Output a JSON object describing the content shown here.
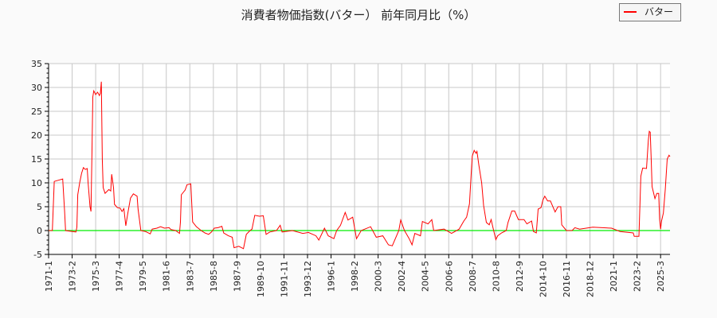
{
  "chart_data": {
    "type": "line",
    "title": "消費者物価指数(バター） 前年同月比（%）",
    "xlabel": "",
    "ylabel": "",
    "ylim": [
      -5,
      35
    ],
    "yticks": [
      -5,
      0,
      5,
      10,
      15,
      20,
      25,
      30,
      35
    ],
    "xlim": [
      "1971-1",
      "2026-1"
    ],
    "xticks": [
      "1971-1",
      "1973-2",
      "1975-3",
      "1977-4",
      "1979-5",
      "1981-6",
      "1983-7",
      "1985-8",
      "1987-9",
      "1989-10",
      "1991-11",
      "1993-12",
      "1996-1",
      "1998-2",
      "2000-3",
      "2002-4",
      "2004-5",
      "2006-6",
      "2008-7",
      "2010-8",
      "2012-9",
      "2014-10",
      "2016-11",
      "2018-12",
      "2021-1",
      "2023-2",
      "2025-3"
    ],
    "grid": true,
    "legend_position": "top-right",
    "reference_line": {
      "y": 0,
      "color": "#00ee00"
    },
    "series": [
      {
        "name": "バター",
        "color": "#ff0000",
        "points": [
          [
            "1971-1",
            0
          ],
          [
            "1971-5",
            0
          ],
          [
            "1971-7",
            10.3
          ],
          [
            "1972-4",
            10.8
          ],
          [
            "1972-6",
            4
          ],
          [
            "1972-7",
            0
          ],
          [
            "1973-6",
            -0.3
          ],
          [
            "1973-7",
            0.7
          ],
          [
            "1973-8",
            7.5
          ],
          [
            "1973-10",
            10
          ],
          [
            "1973-12",
            12
          ],
          [
            "1974-2",
            13.2
          ],
          [
            "1974-4",
            12.8
          ],
          [
            "1974-6",
            13
          ],
          [
            "1974-7",
            10
          ],
          [
            "1974-9",
            5
          ],
          [
            "1974-10",
            4
          ],
          [
            "1974-11",
            16
          ],
          [
            "1974-12",
            28
          ],
          [
            "1975-1",
            29.3
          ],
          [
            "1975-3",
            28.5
          ],
          [
            "1975-5",
            29
          ],
          [
            "1975-7",
            28.3
          ],
          [
            "1975-8",
            28.8
          ],
          [
            "1975-9",
            31.2
          ],
          [
            "1975-10",
            15
          ],
          [
            "1975-11",
            9
          ],
          [
            "1976-1",
            7.8
          ],
          [
            "1976-2",
            8
          ],
          [
            "1976-5",
            8.6
          ],
          [
            "1976-7",
            8.3
          ],
          [
            "1976-8",
            11.8
          ],
          [
            "1976-10",
            9
          ],
          [
            "1976-11",
            5.5
          ],
          [
            "1977-2",
            4.8
          ],
          [
            "1977-5",
            4.7
          ],
          [
            "1977-7",
            4
          ],
          [
            "1977-9",
            4.6
          ],
          [
            "1977-11",
            1
          ],
          [
            "1978-1",
            3.5
          ],
          [
            "1978-4",
            6.8
          ],
          [
            "1978-7",
            7.7
          ],
          [
            "1978-11",
            7.2
          ],
          [
            "1978-12",
            4.5
          ],
          [
            "1979-3",
            0
          ],
          [
            "1979-8",
            -0.2
          ],
          [
            "1980-1",
            -0.7
          ],
          [
            "1980-3",
            0.3
          ],
          [
            "1980-8",
            0.5
          ],
          [
            "1980-12",
            0.8
          ],
          [
            "1981-4",
            0.5
          ],
          [
            "1981-9",
            0.6
          ],
          [
            "1981-11",
            0.2
          ],
          [
            "1982-4",
            0
          ],
          [
            "1982-8",
            -0.6
          ],
          [
            "1982-9",
            1.8
          ],
          [
            "1982-10",
            7.5
          ],
          [
            "1983-2",
            8.5
          ],
          [
            "1983-4",
            9.6
          ],
          [
            "1983-8",
            9.8
          ],
          [
            "1983-10",
            1.8
          ],
          [
            "1984-2",
            0.8
          ],
          [
            "1984-7",
            0
          ],
          [
            "1984-11",
            -0.5
          ],
          [
            "1985-3",
            -0.8
          ],
          [
            "1985-6",
            -0.3
          ],
          [
            "1985-9",
            0.5
          ],
          [
            "1986-1",
            0.6
          ],
          [
            "1986-5",
            0.9
          ],
          [
            "1986-7",
            -0.5
          ],
          [
            "1986-12",
            -1.1
          ],
          [
            "1987-4",
            -1.4
          ],
          [
            "1987-6",
            -3.6
          ],
          [
            "1987-11",
            -3.3
          ],
          [
            "1988-4",
            -3.8
          ],
          [
            "1988-7",
            -0.8
          ],
          [
            "1988-11",
            0
          ],
          [
            "1989-1",
            0.3
          ],
          [
            "1989-4",
            3.2
          ],
          [
            "1989-9",
            3.0
          ],
          [
            "1990-1",
            3.1
          ],
          [
            "1990-4",
            -0.8
          ],
          [
            "1990-8",
            -0.3
          ],
          [
            "1991-3",
            0
          ],
          [
            "1991-7",
            1.1
          ],
          [
            "1991-9",
            -0.3
          ],
          [
            "1992-8",
            0
          ],
          [
            "1993-7",
            -0.6
          ],
          [
            "1994-1",
            -0.4
          ],
          [
            "1994-9",
            -1.1
          ],
          [
            "1994-12",
            -2
          ],
          [
            "1995-6",
            0.5
          ],
          [
            "1995-10",
            -1.1
          ],
          [
            "1996-4",
            -1.7
          ],
          [
            "1996-7",
            0
          ],
          [
            "1996-11",
            1.1
          ],
          [
            "1997-4",
            3.8
          ],
          [
            "1997-7",
            2.2
          ],
          [
            "1997-12",
            2.8
          ],
          [
            "1998-4",
            -1.7
          ],
          [
            "1998-9",
            0
          ],
          [
            "1999-7",
            0.8
          ],
          [
            "2000-1",
            -1.4
          ],
          [
            "2000-8",
            -1.1
          ],
          [
            "2001-2",
            -3
          ],
          [
            "2001-6",
            -3.2
          ],
          [
            "2002-1",
            0
          ],
          [
            "2002-3",
            2.2
          ],
          [
            "2002-7",
            0
          ],
          [
            "2002-12",
            -1.7
          ],
          [
            "2003-3",
            -3
          ],
          [
            "2003-6",
            -0.6
          ],
          [
            "2003-12",
            -1.1
          ],
          [
            "2004-2",
            1.9
          ],
          [
            "2004-8",
            1.4
          ],
          [
            "2004-12",
            2.3
          ],
          [
            "2005-2",
            0
          ],
          [
            "2006-1",
            0.3
          ],
          [
            "2006-9",
            -0.6
          ],
          [
            "2007-5",
            0.3
          ],
          [
            "2007-10",
            2
          ],
          [
            "2008-1",
            2.8
          ],
          [
            "2008-4",
            5.6
          ],
          [
            "2008-6",
            12.3
          ],
          [
            "2008-7",
            15.6
          ],
          [
            "2008-9",
            16.8
          ],
          [
            "2008-11",
            16.2
          ],
          [
            "2008-12",
            16.6
          ],
          [
            "2009-2",
            13.7
          ],
          [
            "2009-5",
            10
          ],
          [
            "2009-7",
            5.3
          ],
          [
            "2009-10",
            1.7
          ],
          [
            "2010-1",
            1.2
          ],
          [
            "2010-3",
            2.3
          ],
          [
            "2010-5",
            0.6
          ],
          [
            "2010-8",
            -1.9
          ],
          [
            "2010-10",
            -1.1
          ],
          [
            "2011-2",
            -0.5
          ],
          [
            "2011-7",
            0
          ],
          [
            "2011-9",
            1.7
          ],
          [
            "2012-1",
            4.1
          ],
          [
            "2012-4",
            4.1
          ],
          [
            "2012-8",
            2.3
          ],
          [
            "2013-2",
            2.3
          ],
          [
            "2013-5",
            1.4
          ],
          [
            "2013-10",
            2
          ],
          [
            "2013-12",
            -0.2
          ],
          [
            "2014-3",
            -0.5
          ],
          [
            "2014-5",
            4.5
          ],
          [
            "2014-8",
            4.8
          ],
          [
            "2014-10",
            6.4
          ],
          [
            "2014-12",
            7.2
          ],
          [
            "2015-3",
            6.2
          ],
          [
            "2015-6",
            6.2
          ],
          [
            "2015-11",
            3.9
          ],
          [
            "2016-2",
            5
          ],
          [
            "2016-5",
            5
          ],
          [
            "2016-6",
            1.2
          ],
          [
            "2016-11",
            0
          ],
          [
            "2017-5",
            0
          ],
          [
            "2017-8",
            0.6
          ],
          [
            "2018-1",
            0.3
          ],
          [
            "2019-3",
            0.7
          ],
          [
            "2020-11",
            0.5
          ],
          [
            "2021-8",
            -0.2
          ],
          [
            "2022-10",
            -0.5
          ],
          [
            "2022-11",
            -1.2
          ],
          [
            "2023-4",
            -1.2
          ],
          [
            "2023-5",
            5
          ],
          [
            "2023-6",
            11.4
          ],
          [
            "2023-8",
            13.1
          ],
          [
            "2023-12",
            13
          ],
          [
            "2024-2",
            18.9
          ],
          [
            "2024-3",
            20.8
          ],
          [
            "2024-4",
            20.6
          ],
          [
            "2024-5",
            15
          ],
          [
            "2024-6",
            9.2
          ],
          [
            "2024-9",
            6.7
          ],
          [
            "2024-11",
            7.8
          ],
          [
            "2025-1",
            7.8
          ],
          [
            "2025-2",
            2.3
          ],
          [
            "2025-3",
            0.3
          ],
          [
            "2025-4",
            2
          ],
          [
            "2025-6",
            3.7
          ],
          [
            "2025-8",
            8.7
          ],
          [
            "2025-10",
            15
          ],
          [
            "2025-12",
            15.8
          ],
          [
            "2026-1",
            15.5
          ]
        ]
      }
    ]
  }
}
